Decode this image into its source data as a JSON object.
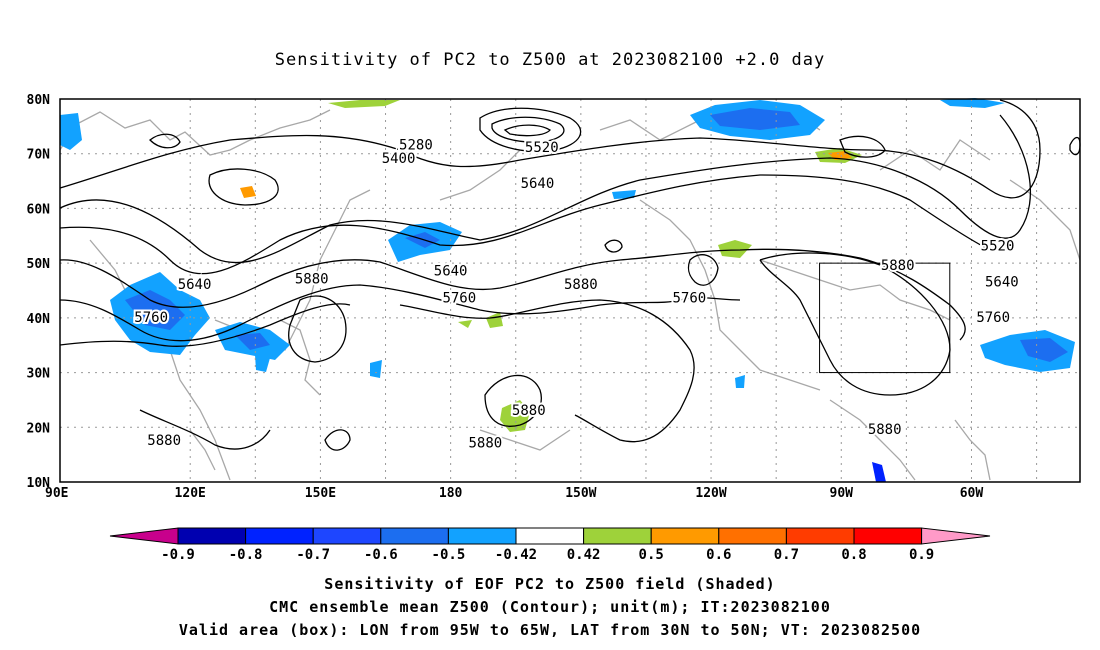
{
  "title": "Sensitivity of PC2 to Z500 at 2023082100 +2.0 day",
  "map": {
    "lat_labels": [
      "80N",
      "70N",
      "60N",
      "50N",
      "40N",
      "30N",
      "20N",
      "10N"
    ],
    "lon_labels": [
      "90E",
      "120E",
      "150E",
      "180",
      "150W",
      "120W",
      "90W",
      "60W"
    ],
    "extent": {
      "lon_min": 90,
      "lon_max": 325,
      "lat_min": 10,
      "lat_max": 80
    },
    "contour_labels": [
      {
        "text": "5280",
        "lon": 172,
        "lat": 71.5
      },
      {
        "text": "5400",
        "lon": 168,
        "lat": 69
      },
      {
        "text": "5520",
        "lon": 201,
        "lat": 71
      },
      {
        "text": "5640",
        "lon": 200,
        "lat": 64.5
      },
      {
        "text": "5520",
        "lon": 306,
        "lat": 53
      },
      {
        "text": "5640",
        "lon": 307,
        "lat": 46.5
      },
      {
        "text": "5760",
        "lon": 305,
        "lat": 40
      },
      {
        "text": "5880",
        "lon": 283,
        "lat": 49.5
      },
      {
        "text": "5640",
        "lon": 121,
        "lat": 46
      },
      {
        "text": "5760",
        "lon": 111,
        "lat": 40
      },
      {
        "text": "5880",
        "lon": 148,
        "lat": 47
      },
      {
        "text": "5640",
        "lon": 180,
        "lat": 48.5
      },
      {
        "text": "5760",
        "lon": 182,
        "lat": 43.5
      },
      {
        "text": "5880",
        "lon": 210,
        "lat": 46
      },
      {
        "text": "5760",
        "lon": 235,
        "lat": 43.5
      },
      {
        "text": "5880",
        "lon": 114,
        "lat": 17.5
      },
      {
        "text": "5880",
        "lon": 198,
        "lat": 23
      },
      {
        "text": "5880",
        "lon": 188,
        "lat": 17
      },
      {
        "text": "5880",
        "lon": 280,
        "lat": 19.5
      }
    ],
    "valid_box": {
      "lon_min": 265,
      "lon_max": 295,
      "lat_min": 30,
      "lat_max": 50
    }
  },
  "colorbar": {
    "labels": [
      "-0.9",
      "-0.8",
      "-0.7",
      "-0.6",
      "-0.5",
      "-0.42",
      "0.42",
      "0.5",
      "0.6",
      "0.7",
      "0.8",
      "0.9"
    ],
    "colors": [
      "#0000b0",
      "#0022ff",
      "#1e46ff",
      "#1c6ef0",
      "#12a2ff",
      "#ffffff",
      "#9ed23a",
      "#ff9a00",
      "#ff7000",
      "#ff3c00",
      "#ff0000"
    ],
    "low_end": "#c8008c",
    "high_end": "#ff9ac8"
  },
  "captions": {
    "line1": "Sensitivity of EOF PC2 to Z500 field (Shaded)",
    "line2": "CMC ensemble mean Z500 (Contour); unit(m); IT:2023082100",
    "line3": "Valid area (box): LON from 95W to 65W, LAT from 30N to 50N; VT: 2023082500"
  }
}
